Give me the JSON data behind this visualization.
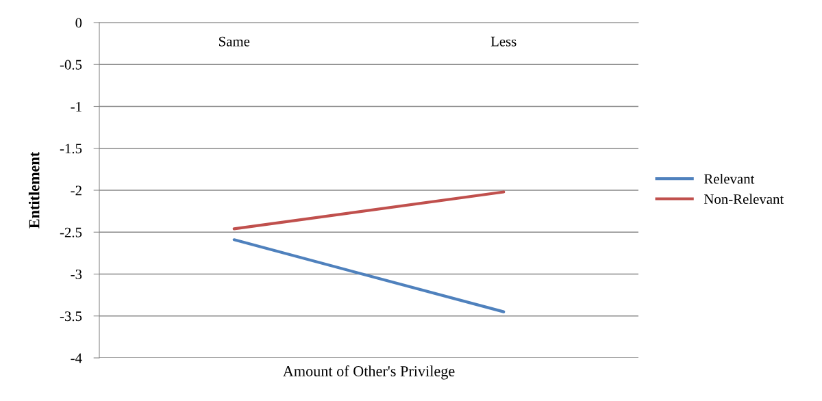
{
  "chart_data": {
    "type": "line",
    "xlabel": "Amount of Other's Privilege",
    "ylabel": "Entitlement",
    "categories": [
      "Same",
      "Less"
    ],
    "series": [
      {
        "name": "Relevant",
        "color": "#4f81bd",
        "values": [
          -2.59,
          -3.45
        ]
      },
      {
        "name": "Non-Relevant",
        "color": "#c0504d",
        "values": [
          -2.46,
          -2.02
        ]
      }
    ],
    "ylim": [
      -4,
      0
    ],
    "yticks": [
      0,
      {
        "value": -0.5,
        "label": "-0.5"
      },
      {
        "value": -1,
        "label": "-1"
      },
      {
        "value": -1.5,
        "label": "-1.5"
      },
      {
        "value": -2,
        "label": "-2"
      },
      {
        "value": -2.5,
        "label": "-2.5"
      },
      {
        "value": -3,
        "label": "-3"
      },
      {
        "value": -3.5,
        "label": "-3.5"
      },
      {
        "value": -4,
        "label": "-4"
      }
    ],
    "grid": "y",
    "legend": "right",
    "marker": "none",
    "line_style": "solid"
  }
}
